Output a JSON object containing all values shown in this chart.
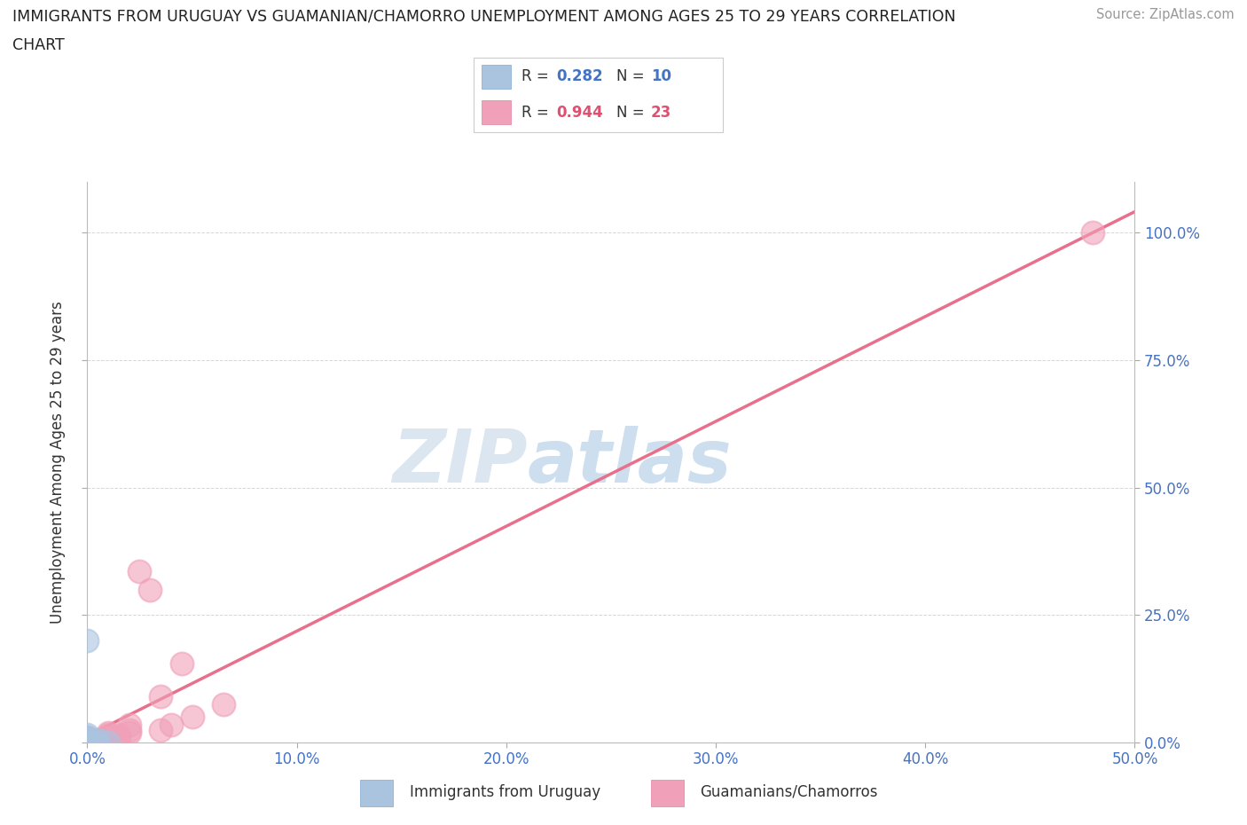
{
  "title_line1": "IMMIGRANTS FROM URUGUAY VS GUAMANIAN/CHAMORRO UNEMPLOYMENT AMONG AGES 25 TO 29 YEARS CORRELATION",
  "title_line2": "CHART",
  "source": "Source: ZipAtlas.com",
  "ylabel_label": "Unemployment Among Ages 25 to 29 years",
  "xlim": [
    0.0,
    0.5
  ],
  "ylim": [
    0.0,
    1.1
  ],
  "uruguay_R": 0.282,
  "uruguay_N": 10,
  "guam_R": 0.944,
  "guam_N": 23,
  "uruguay_color": "#aac4e0",
  "guam_color": "#f0a0b8",
  "uruguay_scatter_x": [
    0.0,
    0.0,
    0.0,
    0.0,
    0.005,
    0.005,
    0.01,
    0.0,
    0.0,
    0.0
  ],
  "uruguay_scatter_y": [
    0.0,
    0.005,
    0.01,
    0.015,
    0.0,
    0.005,
    0.0,
    0.2,
    0.0,
    0.0
  ],
  "guam_scatter_x": [
    0.0,
    0.0,
    0.0,
    0.005,
    0.005,
    0.01,
    0.01,
    0.01,
    0.01,
    0.015,
    0.015,
    0.02,
    0.02,
    0.02,
    0.025,
    0.03,
    0.035,
    0.035,
    0.04,
    0.045,
    0.05,
    0.065,
    0.48
  ],
  "guam_scatter_y": [
    0.0,
    0.005,
    0.01,
    0.0,
    0.005,
    0.005,
    0.01,
    0.015,
    0.02,
    0.01,
    0.015,
    0.02,
    0.025,
    0.035,
    0.335,
    0.3,
    0.025,
    0.09,
    0.035,
    0.155,
    0.05,
    0.075,
    1.0
  ],
  "guam_line_color": "#e8708a",
  "uru_line_color": "#8ab0d8",
  "watermark_zip": "ZIP",
  "watermark_atlas": "atlas",
  "background_color": "#ffffff",
  "grid_color": "#cccccc",
  "x_tick_vals": [
    0.0,
    0.1,
    0.2,
    0.3,
    0.4,
    0.5
  ],
  "x_tick_labels": [
    "0.0%",
    "10.0%",
    "20.0%",
    "30.0%",
    "40.0%",
    "50.0%"
  ],
  "y_tick_vals": [
    0.0,
    0.25,
    0.5,
    0.75,
    1.0
  ],
  "y_tick_labels": [
    "0.0%",
    "25.0%",
    "50.0%",
    "75.0%",
    "100.0%"
  ]
}
